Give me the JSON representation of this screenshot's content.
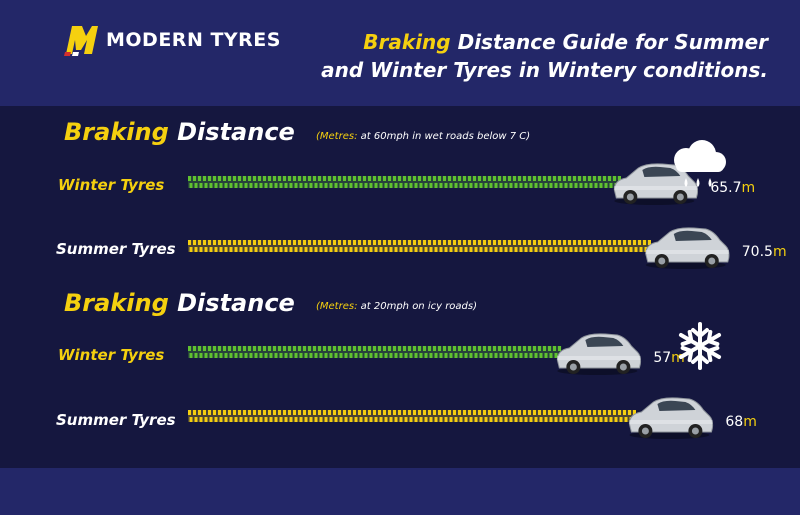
{
  "brand": {
    "name": "MODERN TYRES"
  },
  "headline": {
    "accent": "Braking",
    "rest_line1": " Distance Guide for Summer",
    "line2": "and Winter Tyres in Wintery conditions."
  },
  "colors": {
    "winter_bar": "#5fc230",
    "summer_bar": "#f5d00f",
    "accent": "#f5d00f",
    "background_dark": "#15173f",
    "background_band": "#232768"
  },
  "chart_data": [
    {
      "type": "bar",
      "title_accent": "Braking",
      "title_rest": " Distance",
      "note_accent": "(Metres:",
      "note_rest": " at 60mph in wet roads below 7 C)",
      "icon": "rain-cloud-icon",
      "unit": "m",
      "categories": [
        "Winter Tyres",
        "Summer Tyres"
      ],
      "values": [
        65.7,
        70.5
      ]
    },
    {
      "type": "bar",
      "title_accent": "Braking",
      "title_rest": " Distance",
      "note_accent": "(Metres:",
      "note_rest": " at 20mph on icy roads)",
      "icon": "snowflake-icon",
      "unit": "m",
      "categories": [
        "Winter Tyres",
        "Summer Tyres"
      ],
      "values": [
        57,
        68
      ]
    }
  ]
}
